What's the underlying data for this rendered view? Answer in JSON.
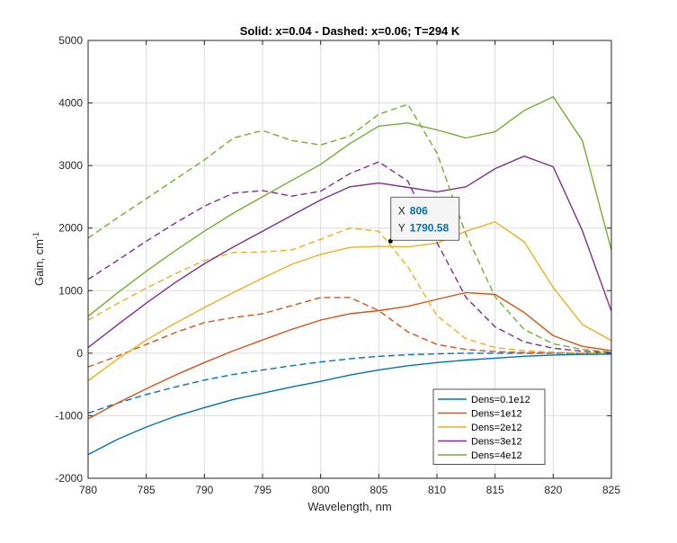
{
  "chart_data": {
    "type": "line",
    "title": "Solid: x=0.04 - Dashed: x=0.06; T=294 K",
    "xlabel": "Wavelength, nm",
    "ylabel_main": "Gain, cm",
    "ylabel_sup": "-1",
    "xlim": [
      780,
      825
    ],
    "ylim": [
      -2000,
      5000
    ],
    "xticks": [
      "780",
      "785",
      "790",
      "795",
      "800",
      "805",
      "810",
      "815",
      "820",
      "825"
    ],
    "yticks": [
      "-2000",
      "-1000",
      "0",
      "1000",
      "2000",
      "3000",
      "4000",
      "5000"
    ],
    "grid": true,
    "legend_position": "bottom-right",
    "x": [
      780,
      782.5,
      785,
      787.5,
      790,
      792.5,
      795,
      797.5,
      800,
      802.5,
      805,
      807.5,
      810,
      812.5,
      815,
      817.5,
      820,
      822.5,
      825
    ],
    "series": [
      {
        "name": "Dens=0.1e12",
        "color": "#0072BD",
        "solid": [
          -1620,
          -1380,
          -1180,
          -1010,
          -870,
          -740,
          -640,
          -540,
          -450,
          -350,
          -270,
          -200,
          -150,
          -110,
          -80,
          -50,
          -30,
          -20,
          -15
        ],
        "dashed": [
          -960,
          -800,
          -660,
          -540,
          -430,
          -340,
          -270,
          -200,
          -140,
          -90,
          -50,
          -25,
          -10,
          0,
          0,
          0,
          0,
          0,
          0
        ]
      },
      {
        "name": "Dens=1e12",
        "color": "#D95319",
        "solid": [
          -1050,
          -800,
          -570,
          -350,
          -150,
          40,
          210,
          380,
          530,
          630,
          680,
          750,
          860,
          970,
          940,
          650,
          280,
          110,
          40
        ],
        "dashed": [
          -220,
          -50,
          140,
          330,
          490,
          570,
          630,
          760,
          890,
          890,
          680,
          340,
          140,
          60,
          25,
          10,
          5,
          0,
          0
        ]
      },
      {
        "name": "Dens=2e12",
        "color": "#EDB120",
        "solid": [
          -440,
          -100,
          210,
          480,
          730,
          970,
          1200,
          1420,
          1580,
          1690,
          1710,
          1700,
          1760,
          1950,
          2100,
          1780,
          1050,
          460,
          200
        ],
        "dashed": [
          530,
          790,
          1040,
          1270,
          1480,
          1610,
          1620,
          1650,
          1820,
          2000,
          1950,
          1380,
          600,
          230,
          90,
          40,
          15,
          5,
          0
        ]
      },
      {
        "name": "Dens=3e12",
        "color": "#7E2F8E",
        "solid": [
          90,
          450,
          800,
          1130,
          1430,
          1700,
          1950,
          2200,
          2450,
          2660,
          2720,
          2650,
          2580,
          2660,
          2950,
          3150,
          2980,
          1960,
          670
        ],
        "dashed": [
          1180,
          1480,
          1790,
          2080,
          2350,
          2560,
          2600,
          2510,
          2590,
          2870,
          3060,
          2750,
          1770,
          890,
          420,
          180,
          80,
          30,
          10
        ]
      },
      {
        "name": "Dens=4e12",
        "color": "#77AC30",
        "solid": [
          590,
          960,
          1310,
          1640,
          1950,
          2240,
          2500,
          2760,
          3020,
          3350,
          3630,
          3680,
          3570,
          3440,
          3540,
          3880,
          4100,
          3400,
          1650
        ],
        "dashed": [
          1840,
          2160,
          2470,
          2780,
          3090,
          3440,
          3560,
          3400,
          3330,
          3470,
          3820,
          3980,
          3200,
          1900,
          900,
          380,
          150,
          60,
          20
        ]
      }
    ],
    "datatip": {
      "x_label": "X",
      "x_value": "806",
      "y_label": "Y",
      "y_value": "1790.58",
      "x": 806,
      "y": 1790.58
    }
  }
}
